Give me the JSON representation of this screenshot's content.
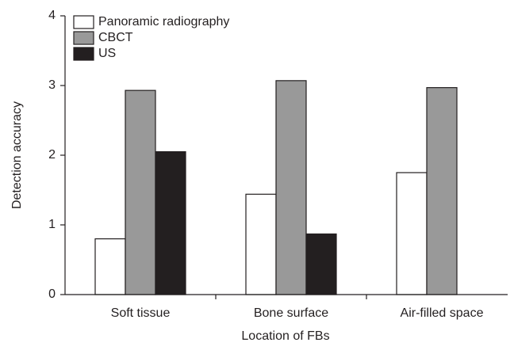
{
  "chart_data": {
    "type": "bar",
    "xlabel": "Location of FBs",
    "ylabel": "Detection accuracy",
    "categories": [
      "Soft tissue",
      "Bone surface",
      "Air-filled space"
    ],
    "series": [
      {
        "name": "Panoramic radiography",
        "color": "#ffffff",
        "values": [
          0.8,
          1.44,
          1.75
        ]
      },
      {
        "name": "CBCT",
        "color": "#999999",
        "values": [
          2.93,
          3.07,
          2.97
        ]
      },
      {
        "name": "US",
        "color": "#231f20",
        "values": [
          2.05,
          0.87,
          null
        ]
      }
    ],
    "ylim": [
      0,
      4
    ],
    "yticks": [
      0,
      1,
      2,
      3,
      4
    ],
    "legend": "upper left"
  }
}
